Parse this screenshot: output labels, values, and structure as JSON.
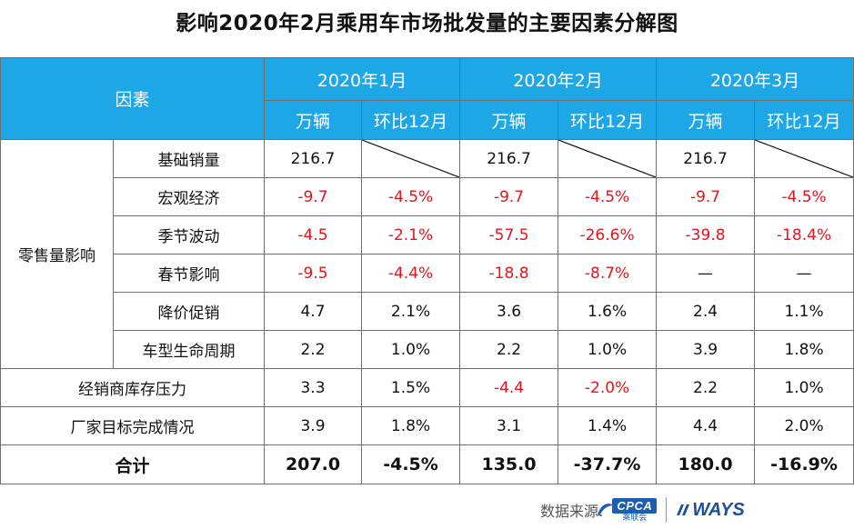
{
  "title": "影响2020年2月乘用车市场批发量的主要因素分解图",
  "header": {
    "factor_label": "因素",
    "months": [
      "2020年1月",
      "2020年2月",
      "2020年3月"
    ],
    "sub_units": "万辆",
    "sub_mom": "环比12月"
  },
  "group_label": "零售量影响",
  "colors": {
    "header_bg": "#1ea7e6",
    "header_text": "#ffffff",
    "negative": "#e8131b",
    "border": "#6e6e6e"
  },
  "chart_data": {
    "type": "table",
    "title": "影响2020年2月乘用车市场批发量的主要因素分解图",
    "columns": [
      "2020年1月 万辆",
      "2020年1月 环比12月",
      "2020年2月 万辆",
      "2020年2月 环比12月",
      "2020年3月 万辆",
      "2020年3月 环比12月"
    ],
    "rows": [
      {
        "label": "基础销量",
        "cells": [
          "216.7",
          "",
          "216.7",
          "",
          "216.7",
          ""
        ]
      },
      {
        "label": "宏观经济",
        "cells": [
          "-9.7",
          "-4.5%",
          "-9.7",
          "-4.5%",
          "-9.7",
          "-4.5%"
        ]
      },
      {
        "label": "季节波动",
        "cells": [
          "-4.5",
          "-2.1%",
          "-57.5",
          "-26.6%",
          "-39.8",
          "-18.4%"
        ]
      },
      {
        "label": "春节影响",
        "cells": [
          "-9.5",
          "-4.4%",
          "-18.8",
          "-8.7%",
          "—",
          "—"
        ]
      },
      {
        "label": "降价促销",
        "cells": [
          "4.7",
          "2.1%",
          "3.6",
          "1.6%",
          "2.4",
          "1.1%"
        ]
      },
      {
        "label": "车型生命周期",
        "cells": [
          "2.2",
          "1.0%",
          "2.2",
          "1.0%",
          "3.9",
          "1.8%"
        ]
      },
      {
        "label": "经销商库存压力",
        "cells": [
          "3.3",
          "1.5%",
          "-4.4",
          "-2.0%",
          "2.2",
          "1.0%"
        ]
      },
      {
        "label": "厂家目标完成情况",
        "cells": [
          "3.9",
          "1.8%",
          "3.1",
          "1.4%",
          "4.4",
          "2.0%"
        ]
      },
      {
        "label": "合计",
        "cells": [
          "207.0",
          "-4.5%",
          "135.0",
          "-37.7%",
          "180.0",
          "-16.9%"
        ]
      }
    ]
  },
  "footer": {
    "source_label": "数据来源:",
    "cpca_logo": "CPCA",
    "cpca_sub": "乘联会",
    "ways_logo": "WAYS"
  }
}
